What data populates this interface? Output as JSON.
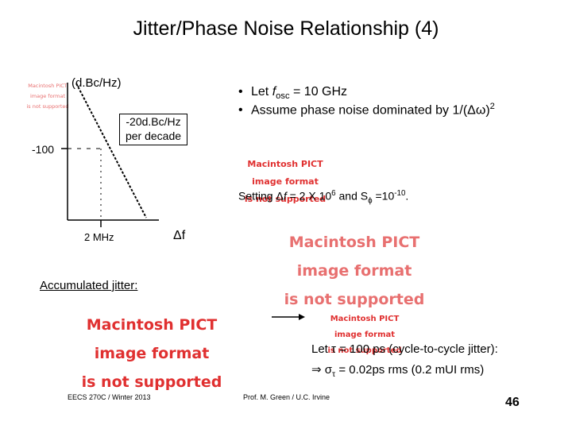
{
  "slide": {
    "title": "Jitter/Phase Noise Relationship (4)",
    "page_number": "46"
  },
  "pict": {
    "line1": "Macintosh PICT",
    "line2": "image format",
    "line3": "is not supported"
  },
  "graph": {
    "y_unit": "(d.Bc/Hz)",
    "slope_label_line1": "-20d.Bc/Hz",
    "slope_label_line2": "per decade",
    "level_label": "-100",
    "corner_label": "2 MHz",
    "x_label": "Δf"
  },
  "bullets": {
    "b1_prefix": "Let  ",
    "b1_var": "f",
    "b1_sub": "osc",
    "b1_suffix": " = 10 GHz",
    "b2_text": "Assume phase noise dominated by 1/(Δω)",
    "b2_sup": "2"
  },
  "setting": {
    "prefix": "Setting Δ",
    "var_f": "f",
    "mid": " = 2 X 10",
    "exp1": "6",
    "and": " and S",
    "sub_phi": "ϕ",
    "eq": " =10",
    "exp2": "-10",
    "end": "."
  },
  "accumulated_label": "Accumulated jitter:",
  "result": {
    "line1": "Let τ = 100 ps (cycle-to-cycle jitter):",
    "line2_prefix": "⇒ σ",
    "line2_sub": "τ",
    "line2_suffix": " = 0.02ps rms (0.2 mUI rms)"
  },
  "footer": {
    "left": "EECS 270C / Winter 2013",
    "center": "Prof. M. Green / U.C. Irvine"
  },
  "colors": {
    "pict_red": "#e03030",
    "pict_red_alt": "#e87070"
  }
}
